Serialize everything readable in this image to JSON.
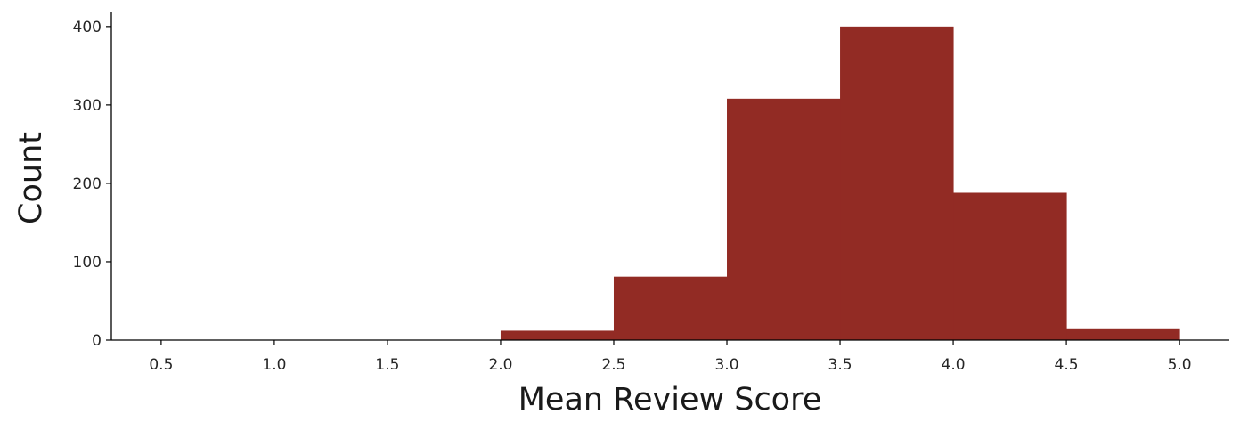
{
  "chart_data": {
    "type": "bar",
    "subtype": "histogram",
    "title": "",
    "xlabel": "Mean Review Score",
    "ylabel": "Count",
    "bins": [
      {
        "x0": 2.0,
        "x1": 2.5,
        "count": 12
      },
      {
        "x0": 2.5,
        "x1": 3.0,
        "count": 81
      },
      {
        "x0": 3.0,
        "x1": 3.5,
        "count": 308
      },
      {
        "x0": 3.5,
        "x1": 4.0,
        "count": 400
      },
      {
        "x0": 4.0,
        "x1": 4.5,
        "count": 188
      },
      {
        "x0": 4.5,
        "x1": 5.0,
        "count": 15
      }
    ],
    "xlim": [
      0.28,
      5.22
    ],
    "ylim": [
      0,
      418
    ],
    "xticks": [
      "0.5",
      "1.0",
      "1.5",
      "2.0",
      "2.5",
      "3.0",
      "3.5",
      "4.0",
      "4.5",
      "5.0"
    ],
    "yticks": [
      "0",
      "100",
      "200",
      "300",
      "400"
    ],
    "bar_color": "#922b24",
    "grid": false,
    "spines": "left-bottom"
  }
}
